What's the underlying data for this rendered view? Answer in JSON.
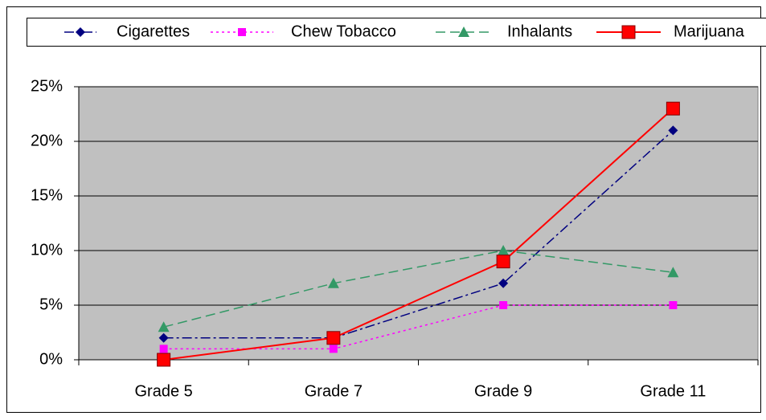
{
  "chart_data": {
    "type": "line",
    "categories": [
      "Grade 5",
      "Grade 7",
      "Grade 9",
      "Grade 11"
    ],
    "series": [
      {
        "name": "Cigarettes",
        "color": "#000080",
        "values": [
          2,
          2,
          7,
          21
        ]
      },
      {
        "name": "Chew Tobacco",
        "color": "#ff00ff",
        "values": [
          1,
          1,
          5,
          5
        ]
      },
      {
        "name": "Inhalants",
        "color": "#339966",
        "values": [
          3,
          7,
          10,
          8
        ]
      },
      {
        "name": "Marijuana",
        "color": "#ff0000",
        "values": [
          0,
          2,
          9,
          23
        ]
      }
    ],
    "ylim": [
      0,
      25
    ],
    "yticks": [
      {
        "value": 0,
        "label": "0%"
      },
      {
        "value": 5,
        "label": "5%"
      },
      {
        "value": 10,
        "label": "10%"
      },
      {
        "value": 15,
        "label": "15%"
      },
      {
        "value": 20,
        "label": "20%"
      },
      {
        "value": 25,
        "label": "25%"
      }
    ],
    "grid": true,
    "legend": "top",
    "plot_background": "#c0c0c0"
  }
}
